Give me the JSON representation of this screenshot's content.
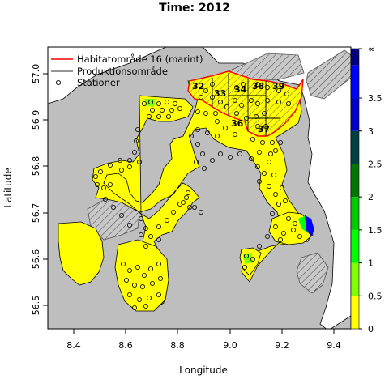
{
  "title": "Time: 2012",
  "xlabel": "Longitude",
  "ylabel": "Latitude",
  "x_ticks": [
    "8.4",
    "8.6",
    "8.8",
    "9.0",
    "9.2",
    "9.4"
  ],
  "y_ticks": [
    "56.5",
    "56.6",
    "56.7",
    "56.8",
    "56.9",
    "57.0"
  ],
  "legend": {
    "items": [
      {
        "label": "Habitatområde 16 (marint)",
        "symbol": "red-line"
      },
      {
        "label": "Produktionsområde",
        "symbol": "gray-line"
      },
      {
        "label": "Stationer",
        "symbol": "circle"
      }
    ]
  },
  "colorbar": {
    "ticks": [
      "0",
      "0.5",
      "1",
      "1.5",
      "2",
      "2.5",
      "3",
      "3.5",
      "∞"
    ],
    "colors": [
      "#ffff00",
      "#7fff00",
      "#00ff00",
      "#00c800",
      "#007800",
      "#004040",
      "#0000c8",
      "#0000ff",
      "#00007f"
    ]
  },
  "area_labels": [
    "32",
    "33",
    "34",
    "38",
    "39",
    "36",
    "37"
  ],
  "colors": {
    "land": "#bebebe",
    "water_fill": "#ffff00",
    "habitat_border": "#ff0000",
    "production_border": "#555555"
  }
}
